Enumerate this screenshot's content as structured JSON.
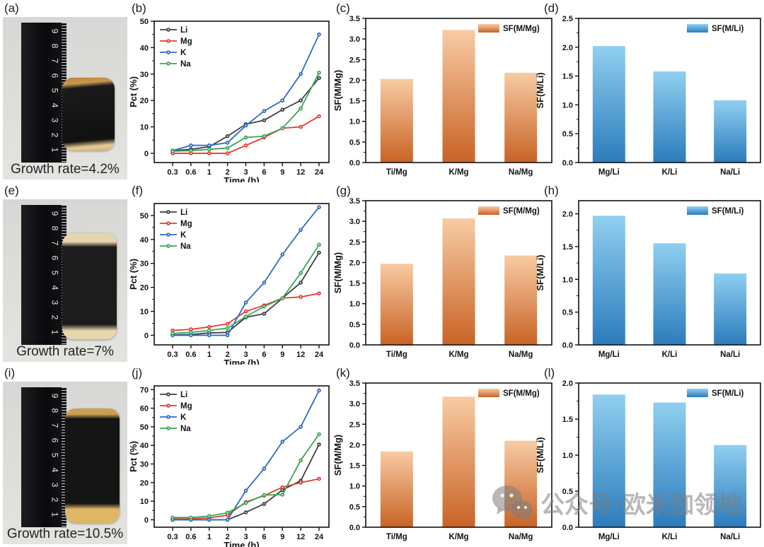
{
  "photo_ruler_numbers": [
    "9",
    "8",
    "7",
    "6",
    "5",
    "4",
    "3",
    "2",
    "1"
  ],
  "photo_panels": {
    "a": {
      "label": "(a)",
      "caption": "Growth rate=4.2%"
    },
    "e": {
      "label": "(e)",
      "caption": "Growth rate=7%"
    },
    "i": {
      "label": "(i)",
      "caption": "Growth rate=10.5%"
    }
  },
  "chart_data": [
    {
      "panel": "b",
      "label": "(b)",
      "type": "line",
      "x_categories": [
        "0.3",
        "0.6",
        "1",
        "2",
        "3",
        "6",
        "9",
        "12",
        "24"
      ],
      "xlabel": "Time (h)",
      "ylabel": "Pct (%)",
      "ylim": [
        -3.5,
        50
      ],
      "yticks": [
        0,
        10,
        20,
        30,
        40,
        50
      ],
      "legend_position": "top-left",
      "grid": false,
      "series": [
        {
          "name": "Li",
          "color": "#3f3f3f",
          "values": [
            1,
            1.5,
            2.5,
            6.5,
            11,
            12.5,
            16.5,
            20,
            28.5
          ]
        },
        {
          "name": "Mg",
          "color": "#e8392e",
          "values": [
            0,
            0,
            0,
            0,
            3,
            6,
            9.5,
            10,
            14
          ]
        },
        {
          "name": "K",
          "color": "#2f6cc3",
          "values": [
            1,
            3,
            3,
            4,
            10.5,
            16,
            20,
            30,
            45
          ]
        },
        {
          "name": "Na",
          "color": "#35a759",
          "values": [
            0.8,
            1,
            1.5,
            2,
            6,
            6.5,
            9.5,
            17,
            30.5
          ]
        }
      ]
    },
    {
      "panel": "c",
      "label": "(c)",
      "type": "bar",
      "categories": [
        "Ti/Mg",
        "K/Mg",
        "Na/Mg"
      ],
      "values": [
        2.03,
        3.22,
        2.18
      ],
      "ylabel": "SF(M/Mg)",
      "legend": "SF(M/Mg)",
      "ylim": [
        0,
        3.5
      ],
      "yticks": [
        0,
        0.5,
        1,
        1.5,
        2,
        2.5,
        3,
        3.5
      ],
      "gradient": [
        "#f8cba4",
        "#c96325"
      ]
    },
    {
      "panel": "d",
      "label": "(d)",
      "type": "bar",
      "categories": [
        "Mg/Li",
        "K/Li",
        "Na/Li"
      ],
      "values": [
        2.02,
        1.58,
        1.08
      ],
      "ylabel": "SF(M/Li)",
      "legend": "SF(M/Li)",
      "ylim": [
        0,
        2.5
      ],
      "yticks": [
        0,
        0.5,
        1,
        1.5,
        2,
        2.5
      ],
      "gradient": [
        "#90cff0",
        "#2b7cbd"
      ]
    },
    {
      "panel": "f",
      "label": "(f)",
      "type": "line",
      "x_categories": [
        "0.3",
        "0.6",
        "1",
        "2",
        "3",
        "6",
        "9",
        "12",
        "24"
      ],
      "xlabel": "Time (h)",
      "ylabel": "Pct (%)",
      "ylim": [
        -4,
        55
      ],
      "yticks": [
        0,
        10,
        20,
        30,
        40,
        50
      ],
      "legend_position": "top-left",
      "grid": false,
      "series": [
        {
          "name": "Li",
          "color": "#3f3f3f",
          "values": [
            0.2,
            0.3,
            1,
            1.2,
            7.5,
            9,
            15.5,
            22,
            34.5
          ]
        },
        {
          "name": "Mg",
          "color": "#e8392e",
          "values": [
            2,
            2.5,
            3.5,
            4.8,
            10,
            12.5,
            15.5,
            16,
            17.5
          ]
        },
        {
          "name": "K",
          "color": "#2f6cc3",
          "values": [
            0,
            0,
            0,
            0,
            13.7,
            22,
            33.7,
            44,
            53.5
          ]
        },
        {
          "name": "Na",
          "color": "#35a759",
          "values": [
            0.8,
            1.2,
            2,
            3,
            7.8,
            12,
            15.5,
            26,
            37.8
          ]
        }
      ]
    },
    {
      "panel": "g",
      "label": "(g)",
      "type": "bar",
      "categories": [
        "Ti/Mg",
        "K/Mg",
        "Na/Mg"
      ],
      "values": [
        1.97,
        3.07,
        2.17
      ],
      "ylabel": "SF(M/Mg)",
      "legend": "SF(M/Mg)",
      "ylim": [
        0,
        3.5
      ],
      "yticks": [
        0,
        0.5,
        1,
        1.5,
        2,
        2.5,
        3,
        3.5
      ],
      "gradient": [
        "#f8cba4",
        "#c96325"
      ]
    },
    {
      "panel": "h",
      "label": "(h)",
      "type": "bar",
      "categories": [
        "Mg/Li",
        "K/Li",
        "Na/Li"
      ],
      "values": [
        1.97,
        1.55,
        1.09
      ],
      "ylabel": "SF(M/Li)",
      "legend": "SF(M/Li)",
      "ylim": [
        0,
        2.2
      ],
      "yticks": [
        0,
        0.5,
        1,
        1.5,
        2
      ],
      "gradient": [
        "#90cff0",
        "#2b7cbd"
      ]
    },
    {
      "panel": "j",
      "label": "(j)",
      "type": "line",
      "x_categories": [
        "0.3",
        "0.6",
        "1",
        "2",
        "3",
        "6",
        "9",
        "12",
        "24"
      ],
      "xlabel": "Time (h)",
      "ylabel": "Pct (%)",
      "ylim": [
        -4,
        72
      ],
      "yticks": [
        0,
        10,
        20,
        30,
        40,
        50,
        60,
        70
      ],
      "legend_position": "top-left",
      "grid": false,
      "series": [
        {
          "name": "Li",
          "color": "#3f3f3f",
          "values": [
            0,
            0,
            0,
            0,
            4,
            8.5,
            16,
            21,
            40.5
          ]
        },
        {
          "name": "Mg",
          "color": "#e8392e",
          "values": [
            0.5,
            0.5,
            1,
            2.5,
            9.5,
            13,
            17.5,
            20,
            22
          ]
        },
        {
          "name": "K",
          "color": "#2f6cc3",
          "values": [
            0,
            0,
            0,
            0,
            15.7,
            27.5,
            42,
            50,
            69.5
          ]
        },
        {
          "name": "Na",
          "color": "#35a759",
          "values": [
            1.2,
            1.2,
            2,
            3.8,
            9,
            13.3,
            13.5,
            32,
            46
          ]
        }
      ]
    },
    {
      "panel": "k",
      "label": "(k)",
      "type": "bar",
      "categories": [
        "Ti/Mg",
        "K/Mg",
        "Na/Mg"
      ],
      "values": [
        1.84,
        3.17,
        2.1
      ],
      "ylabel": "SF(M/Mg)",
      "legend": "SF(M/Mg)",
      "ylim": [
        0,
        3.5
      ],
      "yticks": [
        0,
        0.5,
        1,
        1.5,
        2,
        2.5,
        3,
        3.5
      ],
      "gradient": [
        "#f8cba4",
        "#c96325"
      ]
    },
    {
      "panel": "l",
      "label": "(l)",
      "type": "bar",
      "categories": [
        "Mg/Li",
        "K/Li",
        "Na/Li"
      ],
      "values": [
        1.84,
        1.73,
        1.14
      ],
      "ylabel": "SF(M/Li)",
      "legend": "SF(M/Li)",
      "ylim": [
        0,
        2.0
      ],
      "yticks": [
        0,
        0.5,
        1,
        1.5,
        2
      ],
      "gradient": [
        "#90cff0",
        "#2b7cbd"
      ]
    }
  ],
  "watermark": {
    "text": "公众号·欧米伽领地",
    "icon": "wechat-logo",
    "color": "#7d7d7d"
  }
}
